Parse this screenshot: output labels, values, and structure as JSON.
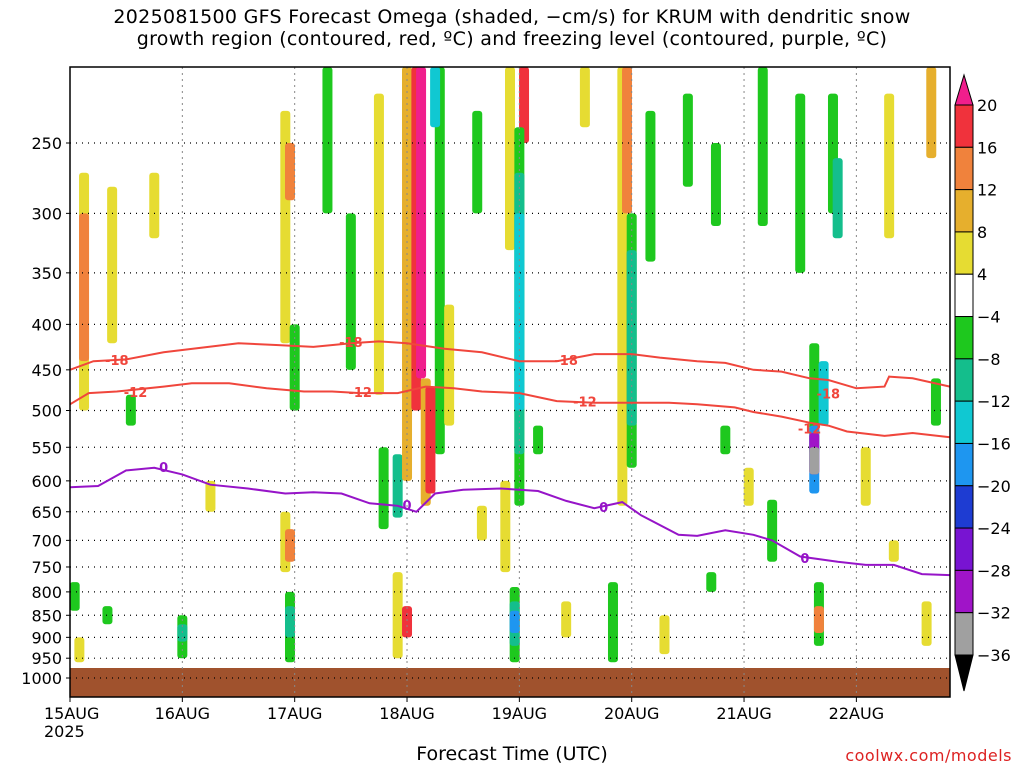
{
  "title": {
    "line1": "2025081500 GFS Forecast Omega (shaded, −cm/s) for KRUM with dendritic snow",
    "line2": "growth region (contoured, red, ºC) and freezing level (contoured, purple, ºC)"
  },
  "credit": "coolwx.com/models",
  "chart_data": {
    "type": "heatmap",
    "xlabel": "Forecast Time (UTC)",
    "ylabel": "",
    "x_ticks": [
      "15AUG\n2025",
      "16AUG",
      "17AUG",
      "18AUG",
      "19AUG",
      "20AUG",
      "21AUG",
      "22AUG"
    ],
    "x_range_hours": [
      0,
      188
    ],
    "y_ticks": [
      250,
      300,
      350,
      400,
      450,
      500,
      550,
      600,
      650,
      700,
      750,
      800,
      850,
      900,
      950,
      1000
    ],
    "y_range_hpa": [
      200,
      1000
    ],
    "grid": "dotted",
    "colorbar": {
      "labels": [
        "20",
        "16",
        "12",
        "8",
        "4",
        "−4",
        "−8",
        "−12",
        "−16",
        "−20",
        "−24",
        "−28",
        "−32",
        "−36"
      ],
      "colors": [
        "#f01e8c",
        "#f0323c",
        "#f0823c",
        "#e6af2d",
        "#e6dc32",
        "#ffffff",
        "#1ec81e",
        "#14be8c",
        "#10c8d2",
        "#1e96f0",
        "#1e3cd2",
        "#7814d2",
        "#a014c8",
        "#a0a0a0",
        "#000000"
      ]
    },
    "shading_cells": [
      {
        "t": 3,
        "p1": 270,
        "p2": 500,
        "c": "#e6dc32"
      },
      {
        "t": 3,
        "p1": 300,
        "p2": 440,
        "c": "#f0823c"
      },
      {
        "t": 9,
        "p1": 280,
        "p2": 420,
        "c": "#e6dc32"
      },
      {
        "t": 2,
        "p1": 900,
        "p2": 960,
        "c": "#e6dc32"
      },
      {
        "t": 1,
        "p1": 780,
        "p2": 840,
        "c": "#1ec81e"
      },
      {
        "t": 8,
        "p1": 830,
        "p2": 870,
        "c": "#1ec81e"
      },
      {
        "t": 24,
        "p1": 850,
        "p2": 950,
        "c": "#1ec81e"
      },
      {
        "t": 24,
        "p1": 870,
        "p2": 910,
        "c": "#14be8c"
      },
      {
        "t": 18,
        "p1": 270,
        "p2": 320,
        "c": "#e6dc32"
      },
      {
        "t": 46,
        "p1": 230,
        "p2": 420,
        "c": "#e6dc32"
      },
      {
        "t": 47,
        "p1": 250,
        "p2": 290,
        "c": "#f0823c"
      },
      {
        "t": 48,
        "p1": 400,
        "p2": 500,
        "c": "#1ec81e"
      },
      {
        "t": 46,
        "p1": 650,
        "p2": 760,
        "c": "#e6dc32"
      },
      {
        "t": 47,
        "p1": 680,
        "p2": 740,
        "c": "#f0823c"
      },
      {
        "t": 47,
        "p1": 800,
        "p2": 960,
        "c": "#1ec81e"
      },
      {
        "t": 47,
        "p1": 830,
        "p2": 900,
        "c": "#14be8c"
      },
      {
        "t": 55,
        "p1": 200,
        "p2": 300,
        "c": "#1ec81e"
      },
      {
        "t": 60,
        "p1": 300,
        "p2": 450,
        "c": "#1ec81e"
      },
      {
        "t": 66,
        "p1": 220,
        "p2": 480,
        "c": "#e6dc32"
      },
      {
        "t": 72,
        "p1": 200,
        "p2": 250,
        "c": "#1ec81e"
      },
      {
        "t": 70,
        "p1": 760,
        "p2": 950,
        "c": "#e6dc32"
      },
      {
        "t": 72,
        "p1": 830,
        "p2": 900,
        "c": "#f0323c"
      },
      {
        "t": 67,
        "p1": 550,
        "p2": 680,
        "c": "#1ec81e"
      },
      {
        "t": 70,
        "p1": 560,
        "p2": 660,
        "c": "#14be8c"
      },
      {
        "t": 72,
        "p1": 200,
        "p2": 600,
        "c": "#e6af2d"
      },
      {
        "t": 74,
        "p1": 200,
        "p2": 500,
        "c": "#f0323c"
      },
      {
        "t": 75,
        "p1": 200,
        "p2": 460,
        "c": "#f01e8c"
      },
      {
        "t": 79,
        "p1": 200,
        "p2": 560,
        "c": "#1ec81e"
      },
      {
        "t": 78,
        "p1": 200,
        "p2": 240,
        "c": "#10c8d2"
      },
      {
        "t": 76,
        "p1": 460,
        "p2": 640,
        "c": "#e6af2d"
      },
      {
        "t": 77,
        "p1": 470,
        "p2": 620,
        "c": "#f0323c"
      },
      {
        "t": 81,
        "p1": 380,
        "p2": 520,
        "c": "#e6dc32"
      },
      {
        "t": 87,
        "p1": 230,
        "p2": 300,
        "c": "#1ec81e"
      },
      {
        "t": 88,
        "p1": 640,
        "p2": 700,
        "c": "#e6dc32"
      },
      {
        "t": 94,
        "p1": 200,
        "p2": 330,
        "c": "#e6dc32"
      },
      {
        "t": 97,
        "p1": 200,
        "p2": 250,
        "c": "#f0323c"
      },
      {
        "t": 96,
        "p1": 240,
        "p2": 640,
        "c": "#1ec81e"
      },
      {
        "t": 96,
        "p1": 270,
        "p2": 560,
        "c": "#14be8c"
      },
      {
        "t": 96,
        "p1": 300,
        "p2": 500,
        "c": "#10c8d2"
      },
      {
        "t": 95,
        "p1": 790,
        "p2": 960,
        "c": "#1ec81e"
      },
      {
        "t": 95,
        "p1": 820,
        "p2": 920,
        "c": "#14be8c"
      },
      {
        "t": 95,
        "p1": 840,
        "p2": 890,
        "c": "#1e96f0"
      },
      {
        "t": 93,
        "p1": 600,
        "p2": 760,
        "c": "#e6dc32"
      },
      {
        "t": 106,
        "p1": 820,
        "p2": 900,
        "c": "#e6dc32"
      },
      {
        "t": 118,
        "p1": 200,
        "p2": 640,
        "c": "#e6dc32"
      },
      {
        "t": 119,
        "p1": 200,
        "p2": 300,
        "c": "#f0823c"
      },
      {
        "t": 120,
        "p1": 300,
        "p2": 580,
        "c": "#1ec81e"
      },
      {
        "t": 120,
        "p1": 330,
        "p2": 520,
        "c": "#14be8c"
      },
      {
        "t": 116,
        "p1": 780,
        "p2": 960,
        "c": "#1ec81e"
      },
      {
        "t": 124,
        "p1": 230,
        "p2": 340,
        "c": "#1ec81e"
      },
      {
        "t": 132,
        "p1": 220,
        "p2": 280,
        "c": "#1ec81e"
      },
      {
        "t": 138,
        "p1": 250,
        "p2": 310,
        "c": "#1ec81e"
      },
      {
        "t": 148,
        "p1": 200,
        "p2": 310,
        "c": "#1ec81e"
      },
      {
        "t": 150,
        "p1": 630,
        "p2": 740,
        "c": "#1ec81e"
      },
      {
        "t": 156,
        "p1": 220,
        "p2": 350,
        "c": "#1ec81e"
      },
      {
        "t": 159,
        "p1": 420,
        "p2": 560,
        "c": "#1ec81e"
      },
      {
        "t": 161,
        "p1": 440,
        "p2": 520,
        "c": "#10c8d2"
      },
      {
        "t": 159,
        "p1": 520,
        "p2": 620,
        "c": "#1e96f0"
      },
      {
        "t": 159,
        "p1": 530,
        "p2": 590,
        "c": "#a014c8"
      },
      {
        "t": 159,
        "p1": 550,
        "p2": 590,
        "c": "#a0a0a0"
      },
      {
        "t": 160,
        "p1": 780,
        "p2": 920,
        "c": "#1ec81e"
      },
      {
        "t": 160,
        "p1": 830,
        "p2": 890,
        "c": "#f0823c"
      },
      {
        "t": 163,
        "p1": 220,
        "p2": 300,
        "c": "#1ec81e"
      },
      {
        "t": 164,
        "p1": 260,
        "p2": 320,
        "c": "#14be8c"
      },
      {
        "t": 170,
        "p1": 550,
        "p2": 640,
        "c": "#e6dc32"
      },
      {
        "t": 175,
        "p1": 220,
        "p2": 320,
        "c": "#e6dc32"
      },
      {
        "t": 184,
        "p1": 200,
        "p2": 260,
        "c": "#e6af2d"
      },
      {
        "t": 183,
        "p1": 820,
        "p2": 920,
        "c": "#e6dc32"
      },
      {
        "t": 185,
        "p1": 460,
        "p2": 520,
        "c": "#1ec81e"
      },
      {
        "t": 145,
        "p1": 580,
        "p2": 640,
        "c": "#e6dc32"
      },
      {
        "t": 137,
        "p1": 760,
        "p2": 800,
        "c": "#1ec81e"
      },
      {
        "t": 13,
        "p1": 480,
        "p2": 520,
        "c": "#1ec81e"
      },
      {
        "t": 30,
        "p1": 600,
        "p2": 650,
        "c": "#e6dc32"
      },
      {
        "t": 100,
        "p1": 520,
        "p2": 560,
        "c": "#1ec81e"
      },
      {
        "t": 110,
        "p1": 200,
        "p2": 240,
        "c": "#e6dc32"
      },
      {
        "t": 140,
        "p1": 520,
        "p2": 560,
        "c": "#1ec81e"
      },
      {
        "t": 127,
        "p1": 850,
        "p2": 940,
        "c": "#e6dc32"
      },
      {
        "t": 176,
        "p1": 700,
        "p2": 740,
        "c": "#e6dc32"
      }
    ],
    "contours": [
      {
        "level": "-18",
        "color": "#f0463c",
        "points": [
          [
            0,
            450
          ],
          [
            5,
            440
          ],
          [
            12,
            438
          ],
          [
            20,
            430
          ],
          [
            28,
            425
          ],
          [
            36,
            420
          ],
          [
            44,
            422
          ],
          [
            52,
            424
          ],
          [
            60,
            420
          ],
          [
            66,
            418
          ],
          [
            72,
            420
          ],
          [
            80,
            426
          ],
          [
            88,
            430
          ],
          [
            96,
            440
          ],
          [
            104,
            440
          ],
          [
            112,
            432
          ],
          [
            120,
            432
          ],
          [
            126,
            436
          ],
          [
            134,
            440
          ],
          [
            140,
            442
          ],
          [
            146,
            450
          ],
          [
            152,
            452
          ],
          [
            158,
            460
          ],
          [
            162,
            462
          ],
          [
            168,
            472
          ],
          [
            174,
            470
          ],
          [
            175,
            458
          ],
          [
            180,
            460
          ],
          [
            188,
            470
          ]
        ],
        "labels": [
          [
            10,
            440,
            "-18"
          ],
          [
            60,
            420,
            "-18"
          ],
          [
            106,
            440,
            "-18"
          ],
          [
            162,
            480,
            "-18"
          ]
        ]
      },
      {
        "level": "-12",
        "color": "#f0463c",
        "points": [
          [
            0,
            492
          ],
          [
            4,
            478
          ],
          [
            10,
            476
          ],
          [
            20,
            470
          ],
          [
            26,
            466
          ],
          [
            34,
            466
          ],
          [
            42,
            472
          ],
          [
            50,
            476
          ],
          [
            56,
            476
          ],
          [
            62,
            478
          ],
          [
            70,
            478
          ],
          [
            76,
            470
          ],
          [
            82,
            472
          ],
          [
            88,
            476
          ],
          [
            96,
            478
          ],
          [
            104,
            488
          ],
          [
            112,
            490
          ],
          [
            120,
            490
          ],
          [
            128,
            490
          ],
          [
            134,
            492
          ],
          [
            142,
            496
          ],
          [
            146,
            502
          ],
          [
            152,
            508
          ],
          [
            158,
            516
          ],
          [
            162,
            520
          ],
          [
            166,
            528
          ],
          [
            174,
            534
          ],
          [
            180,
            530
          ],
          [
            188,
            536
          ]
        ],
        "labels": [
          [
            14,
            478,
            "-12"
          ],
          [
            62,
            478,
            "-12"
          ],
          [
            110,
            490,
            "-12"
          ],
          [
            158,
            525,
            "-12"
          ]
        ]
      },
      {
        "level": "0",
        "color": "#9614c8",
        "points": [
          [
            0,
            610
          ],
          [
            6,
            608
          ],
          [
            12,
            584
          ],
          [
            18,
            580
          ],
          [
            24,
            590
          ],
          [
            30,
            606
          ],
          [
            38,
            612
          ],
          [
            46,
            620
          ],
          [
            52,
            618
          ],
          [
            58,
            620
          ],
          [
            64,
            636
          ],
          [
            70,
            640
          ],
          [
            74,
            650
          ],
          [
            78,
            620
          ],
          [
            84,
            614
          ],
          [
            92,
            612
          ],
          [
            100,
            616
          ],
          [
            106,
            632
          ],
          [
            112,
            644
          ],
          [
            118,
            634
          ],
          [
            122,
            656
          ],
          [
            130,
            690
          ],
          [
            134,
            692
          ],
          [
            140,
            682
          ],
          [
            146,
            690
          ],
          [
            150,
            700
          ],
          [
            156,
            730
          ],
          [
            164,
            740
          ],
          [
            170,
            746
          ],
          [
            176,
            746
          ],
          [
            182,
            764
          ],
          [
            188,
            766
          ]
        ],
        "labels": [
          [
            20,
            580,
            "0"
          ],
          [
            72,
            640,
            "0"
          ],
          [
            114,
            644,
            "0"
          ],
          [
            157,
            735,
            "0"
          ]
        ]
      }
    ]
  }
}
